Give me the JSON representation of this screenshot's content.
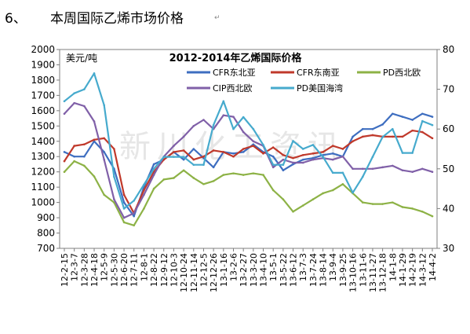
{
  "section": {
    "number": "6、",
    "title": "本周国际乙烯市场价格",
    "return_mark": "↵"
  },
  "watermark": "新川化工资讯",
  "chart_data": {
    "type": "line",
    "title": "2012-2014年乙烯国际价格",
    "unit_label": "美元/吨",
    "xlabel": "",
    "ylabel": "",
    "ylim_left": [
      700,
      2000
    ],
    "ylim_right": [
      30,
      80
    ],
    "yticks_left": [
      700,
      800,
      900,
      1000,
      1100,
      1200,
      1300,
      1400,
      1500,
      1600,
      1700,
      1800,
      1900,
      2000
    ],
    "yticks_right": [
      30,
      40,
      50,
      60,
      70,
      80
    ],
    "categories": [
      "12-2-15",
      "12-3-7",
      "12-3-28",
      "12-4-18",
      "12-5-9",
      "12-5-30",
      "12-6-20",
      "12-7-11",
      "12-8-1",
      "12-8-22",
      "12-9-12",
      "12-10-3",
      "12-10-24",
      "12-11-14",
      "12-12-5",
      "12-12-26",
      "13-1-16",
      "13-2-6",
      "13-2-27",
      "13-3-20",
      "13-4-10",
      "13-5-1",
      "13-5-22",
      "13-6-12",
      "13-7-3",
      "13-7-24",
      "13-8-14",
      "13-9-4",
      "13-9-25",
      "13-10-16",
      "13-11-6",
      "13-11-27",
      "13-12-18",
      "14-1-8",
      "14-1-29",
      "14-2-19",
      "14-3-12",
      "14-4-2"
    ],
    "series": [
      {
        "name": "CFR东北亚",
        "color": "#3E6EC0",
        "axis": "left",
        "values": [
          1330,
          1300,
          1300,
          1400,
          1330,
          1220,
          1000,
          910,
          1100,
          1250,
          1280,
          1330,
          1280,
          1350,
          1290,
          1230,
          1330,
          1320,
          1330,
          1380,
          1330,
          1300,
          1210,
          1250,
          1280,
          1290,
          1310,
          1320,
          1300,
          1430,
          1480,
          1480,
          1510,
          1580,
          1560,
          1540,
          1580,
          1560
        ]
      },
      {
        "name": "CFR东南亚",
        "color": "#C0392B",
        "axis": "left",
        "values": [
          1270,
          1370,
          1380,
          1410,
          1420,
          1350,
          1050,
          930,
          1080,
          1200,
          1280,
          1330,
          1340,
          1280,
          1300,
          1340,
          1330,
          1300,
          1350,
          1370,
          1320,
          1360,
          1310,
          1290,
          1310,
          1320,
          1330,
          1370,
          1350,
          1400,
          1430,
          1440,
          1430,
          1430,
          1430,
          1470,
          1460,
          1420
        ]
      },
      {
        "name": "PD西北欧",
        "color": "#8DB246",
        "axis": "left",
        "values": [
          1200,
          1270,
          1240,
          1170,
          1050,
          1000,
          870,
          850,
          960,
          1090,
          1150,
          1160,
          1210,
          1160,
          1120,
          1140,
          1180,
          1190,
          1180,
          1190,
          1180,
          1080,
          1020,
          940,
          980,
          1020,
          1060,
          1080,
          1120,
          1060,
          1000,
          990,
          990,
          1000,
          970,
          960,
          940,
          910
        ]
      },
      {
        "name": "CIP西北欧",
        "color": "#8060A8",
        "axis": "left",
        "values": [
          1580,
          1650,
          1630,
          1530,
          1280,
          1020,
          900,
          930,
          1050,
          1180,
          1300,
          1370,
          1430,
          1500,
          1540,
          1480,
          1570,
          1560,
          1460,
          1400,
          1370,
          1230,
          1280,
          1260,
          1260,
          1280,
          1290,
          1280,
          1300,
          1220,
          1220,
          1220,
          1230,
          1240,
          1210,
          1200,
          1220,
          1200
        ]
      },
      {
        "name": "PD美国海湾",
        "color": "#46AACD",
        "axis": "right",
        "values": [
          67,
          69,
          70,
          74,
          66,
          48,
          40,
          42,
          46,
          50,
          53,
          53,
          53,
          51,
          51,
          61,
          67,
          60,
          63,
          60,
          56,
          51,
          51,
          57,
          55,
          56,
          53,
          49,
          49,
          44,
          48,
          53,
          58,
          60,
          54,
          54,
          62,
          61
        ]
      }
    ],
    "legend": "top-inside",
    "grid": false
  }
}
